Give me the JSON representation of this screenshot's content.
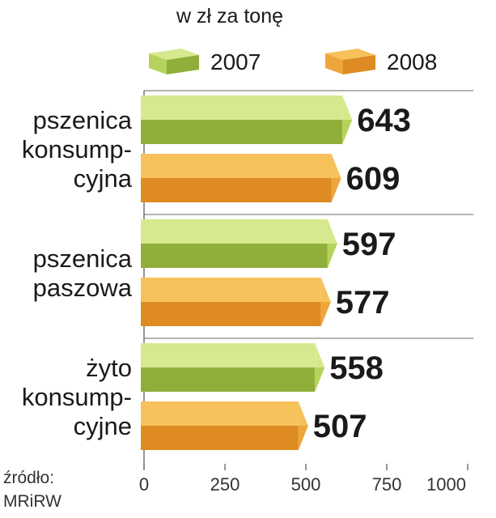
{
  "chart_data": {
    "type": "bar",
    "orientation": "horizontal",
    "subtitle": "w zł za tonę",
    "categories": [
      [
        "pszenica",
        "konsump-",
        "cyjna"
      ],
      [
        "pszenica",
        "paszowa"
      ],
      [
        "żyto",
        "konsump-",
        "cyjne"
      ]
    ],
    "series": [
      {
        "name": "2007",
        "values": [
          643,
          597,
          558
        ],
        "color": "#b5d35a",
        "color_light": "#d6e98e",
        "color_dark": "#8fae3a"
      },
      {
        "name": "2008",
        "values": [
          609,
          577,
          507
        ],
        "color": "#eea63a",
        "color_light": "#f6c15a",
        "color_dark": "#dd8b22"
      }
    ],
    "xlim": [
      0,
      1000
    ],
    "xticks": [
      "0",
      "250",
      "500",
      "750",
      "1000"
    ],
    "legend_position": "top",
    "data_labels": true,
    "source_label": "źródło:",
    "source": "MRiRW"
  }
}
